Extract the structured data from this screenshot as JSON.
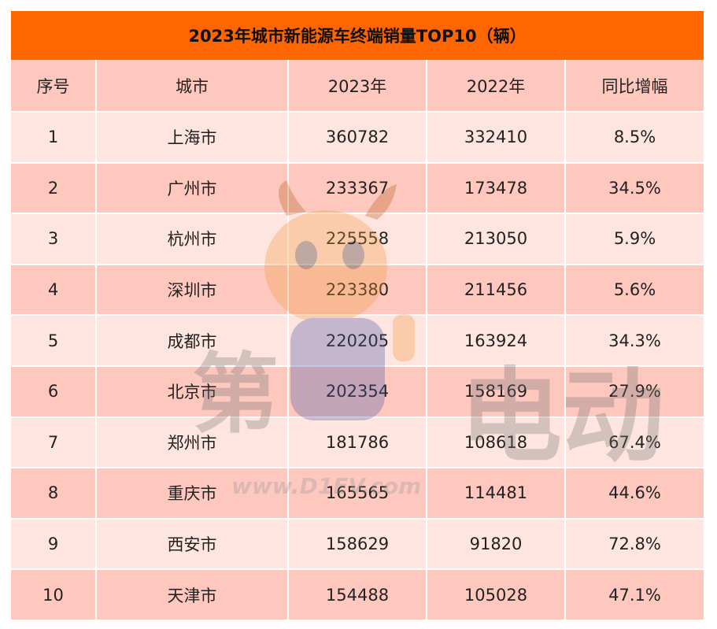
{
  "title": "2023年城市新能源车终端销量TOP10（辆）",
  "headers": [
    "序号",
    "城市",
    "2023年",
    "2022年",
    "同比增幅"
  ],
  "rows": [
    [
      "1",
      "上海市",
      "360782",
      "332410",
      "8.5%"
    ],
    [
      "2",
      "广州市",
      "233367",
      "173478",
      "34.5%"
    ],
    [
      "3",
      "杭州市",
      "225558",
      "213050",
      "5.9%"
    ],
    [
      "4",
      "深圳市",
      "223380",
      "211456",
      "5.6%"
    ],
    [
      "5",
      "成都市",
      "220205",
      "163924",
      "34.3%"
    ],
    [
      "6",
      "北京市",
      "202354",
      "158169",
      "27.9%"
    ],
    [
      "7",
      "郑州市",
      "181786",
      "108618",
      "67.4%"
    ],
    [
      "8",
      "重庆市",
      "165565",
      "114481",
      "44.6%"
    ],
    [
      "9",
      "西安市",
      "158629",
      "91820",
      "72.8%"
    ],
    [
      "10",
      "天津市",
      "154488",
      "105028",
      "47.1%"
    ]
  ],
  "watermark": {
    "left_text": "第",
    "right_text": "电动",
    "url": "www.D1EV.com"
  },
  "colors": {
    "title_bg": "#ff6600",
    "header_bg": "#ffc8bf",
    "row_odd": "#ffe5e0",
    "row_even": "#ffc8bf"
  }
}
